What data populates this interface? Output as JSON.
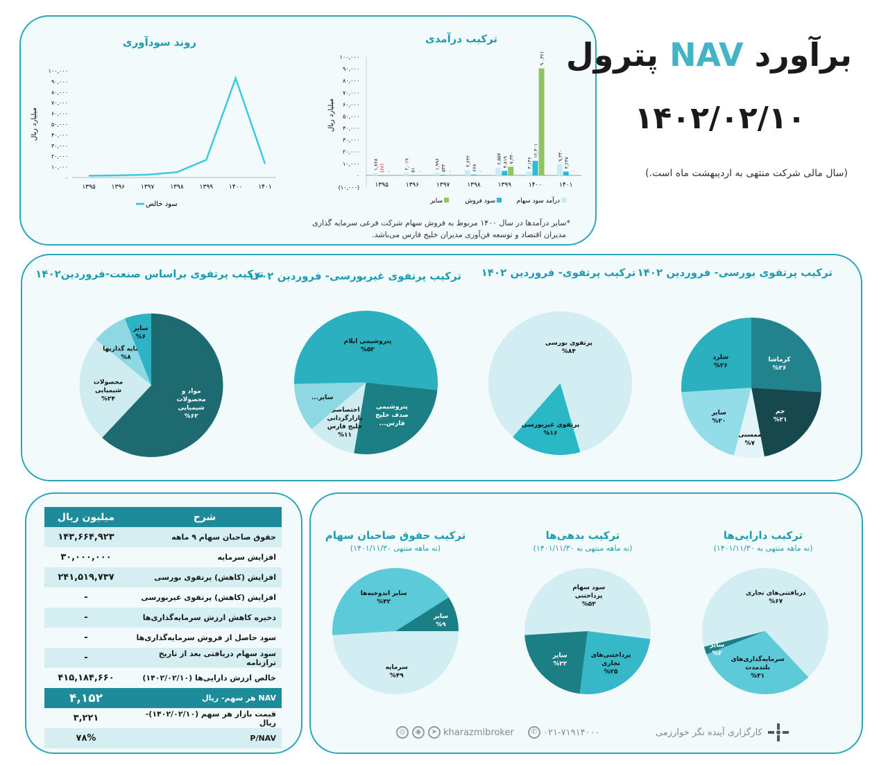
{
  "header": {
    "title_pre": "برآورد",
    "title_nav": "NAV",
    "title_post": "پترول",
    "date": "۱۴۰۲/۰۲/۱۰",
    "note": "(سال مالی شرکت منتهی به اردیبهشت ماه است.)"
  },
  "chart_data": [
    {
      "id": "profit",
      "type": "line",
      "title": "روند سودآوری",
      "ylabel": "میلیارد ریال",
      "x": [
        "۱۳۹۵",
        "۱۳۹۶",
        "۱۳۹۷",
        "۱۳۹۸",
        "۱۳۹۹",
        "۱۴۰۰",
        "۱۴۰۱"
      ],
      "y_ticks": [
        "۱۰۰,۰۰۰",
        "۹۰,۰۰۰",
        "۸۰,۰۰۰",
        "۷۰,۰۰۰",
        "۶۰,۰۰۰",
        "۵۰,۰۰۰",
        "۴۰,۰۰۰",
        "۳۰,۰۰۰",
        "۲۰,۰۰۰",
        "۱۰,۰۰۰",
        "۰"
      ],
      "ylim": [
        0,
        100000
      ],
      "series": [
        {
          "name": "سود خالص",
          "values": [
            1700,
            2000,
            2700,
            5000,
            16500,
            93000,
            13000
          ],
          "color": "#3cc8e0"
        }
      ]
    },
    {
      "id": "income",
      "type": "bar",
      "title": "ترکیب درآمدی",
      "ylabel": "میلیارد ریال",
      "x": [
        "۱۳۹۵",
        "۱۳۹۶",
        "۱۳۹۷",
        "۱۳۹۸",
        "۱۳۹۹",
        "۱۴۰۰",
        "۱۴۰۱"
      ],
      "y_ticks": [
        "۱۰۰,۰۰۰",
        "۹۰,۰۰۰",
        "۸۰,۰۰۰",
        "۷۰,۰۰۰",
        "۶۰,۰۰۰",
        "۵۰,۰۰۰",
        "۴۰,۰۰۰",
        "۳۰,۰۰۰",
        "۲۰,۰۰۰",
        "۱۰,۰۰۰",
        "۰",
        "(۱۰,۰۰۰)"
      ],
      "ylim": [
        -10000,
        100000
      ],
      "series": [
        {
          "name": "درآمد سود سهام",
          "color": "#c8ecf2",
          "values": [
            1768,
            2019,
            1996,
            4632,
            6557,
            3136,
            9340
          ],
          "labels": [
            "۱,۷۶۸",
            "۲,۰۱۹",
            "۱,۹۹۶",
            "۴,۶۳۲",
            "۶,۵۵۷",
            "۳,۱۳۶",
            "۹,۳۴۰"
          ]
        },
        {
          "name": "سود فروش",
          "color": "#2fb9d8",
          "values": [
            -66,
            51,
            543,
            668,
            3819,
            12301,
            3237
          ],
          "labels": [
            "(۶۶)",
            "۵۱",
            "۵۴۳",
            "۶۶۸",
            "۳,۸۱۹",
            "۱۲,۳۰۱",
            "۳,۲۳۷"
          ]
        },
        {
          "name": "سایر",
          "color": "#8fc462",
          "values": [
            0,
            0,
            0,
            0,
            7340,
            90321,
            0
          ],
          "labels": [
            "۰",
            "۰",
            "۰",
            "۰",
            "۷,۳۴۰",
            "۹۰,۳۲۱",
            "۰"
          ]
        }
      ],
      "footnote_1": "*سایر درآمدها در سال ۱۴۰۰ مربوط به فروش سهام شرکت فرعی سرمایه گذاری",
      "footnote_2": "مدیران اقتصاد و توسعه فن‌آوری مدیران خلیج فارس می‌باشد."
    },
    {
      "id": "industry",
      "type": "pie",
      "title": "ترکیب پرتفوی براساس صنعت-فروردین۱۴۰۲",
      "slices": [
        {
          "label": "مواد و محصولات شیمیایی",
          "pct": "%۶۲",
          "value": 62,
          "color": "#1d6b71"
        },
        {
          "label": "محصولات شیمیایی",
          "pct": "%۲۴",
          "value": 24,
          "color": "#cfecf1"
        },
        {
          "label": "سرمایه گذاریها",
          "pct": "%۸",
          "value": 8,
          "color": "#8ed8e4"
        },
        {
          "label": "سایر",
          "pct": "%۶",
          "value": 6,
          "color": "#2fb2c3"
        }
      ]
    },
    {
      "id": "unlisted",
      "type": "pie",
      "title": "ترکیب پرتفوی غیربورسی- فروردین ۱۴۰۲",
      "slices": [
        {
          "label": "پتروشیمی ایلام",
          "pct": "%۵۲",
          "value": 52,
          "color": "#2ab0bf"
        },
        {
          "label": "پتروشیمی صدف خلیج فارس...",
          "pct": "",
          "value": 26,
          "color": "#1d7f86"
        },
        {
          "label": "اختصاصی بازارگردانی خلیج فارس",
          "pct": "%۱۱",
          "value": 11,
          "color": "#cfecf1"
        },
        {
          "label": "سایر...",
          "pct": "",
          "value": 11,
          "color": "#8ed8e4"
        }
      ]
    },
    {
      "id": "portfolio",
      "type": "pie",
      "title": "ترکیب پرتفوی- فروردین ۱۴۰۲",
      "slices": [
        {
          "label": "پرتفوی بورسی",
          "pct": "%۸۴",
          "value": 84,
          "color": "#d2eef3"
        },
        {
          "label": "پرتفوی غیربورسی",
          "pct": "%۱۶",
          "value": 16,
          "color": "#2ab8c6"
        }
      ]
    },
    {
      "id": "listed",
      "type": "pie",
      "title": "ترکیب پرتفوی بورسی- فروردین ۱۴۰۲",
      "slices": [
        {
          "label": "کرماشا",
          "pct": "%۲۶",
          "value": 26,
          "color": "#22838d"
        },
        {
          "label": "جم",
          "pct": "%۲۱",
          "value": 21,
          "color": "#17484d"
        },
        {
          "label": "ممسنی",
          "pct": "%۷",
          "value": 7,
          "color": "#e2f4f7"
        },
        {
          "label": "سایر",
          "pct": "%۲۰",
          "value": 20,
          "color": "#93dde8"
        },
        {
          "label": "شلرد",
          "pct": "%۲۶",
          "value": 26,
          "color": "#2ab0bf"
        }
      ]
    },
    {
      "id": "equity",
      "type": "pie",
      "title": "ترکیب حقوق صاحبان سهام",
      "subtitle": "(نه ماهه منتهی ۱۴۰۱/۱۱/۳۰)",
      "slices": [
        {
          "label": "سرمایه",
          "pct": "%۴۹",
          "value": 49,
          "color": "#d2eef3"
        },
        {
          "label": "سایر اندوخته‌ها",
          "pct": "%۴۲",
          "value": 42,
          "color": "#5ccad8"
        },
        {
          "label": "سایر",
          "pct": "%۹",
          "value": 9,
          "color": "#1d7f86"
        }
      ]
    },
    {
      "id": "liabilities",
      "type": "pie",
      "title": "ترکیب بدهی‌ها",
      "subtitle": "(نه ماهه منتهی به ۱۴۰۱/۱۱/۳۰)",
      "slices": [
        {
          "label": "سود سهام پرداختنی",
          "pct": "%۵۳",
          "value": 53,
          "color": "#d2eef3"
        },
        {
          "label": "پرداختنی‌های تجاری",
          "pct": "%۲۵",
          "value": 25,
          "color": "#36b8c8"
        },
        {
          "label": "سایر",
          "pct": "%۲۲",
          "value": 22,
          "color": "#1d7f86"
        }
      ]
    },
    {
      "id": "assets",
      "type": "pie",
      "title": "ترکیب دارایی‌ها",
      "subtitle": "(نه ماهه منتهی به ۱۴۰۱/۱۱/۳۰)",
      "slices": [
        {
          "label": "دریافتنی‌های تجاری",
          "pct": "%۶۷",
          "value": 67,
          "color": "#d2eef3"
        },
        {
          "label": "سرمایه‌گذاری‌های بلندمدت",
          "pct": "%۳۱",
          "value": 31,
          "color": "#5ccad8"
        },
        {
          "label": "سایر",
          "pct": "%۲",
          "value": 2,
          "color": "#1d7f86"
        }
      ]
    }
  ],
  "nav_table": {
    "col_desc": "شرح",
    "col_value": "میلیون ریال",
    "rows": [
      {
        "desc": "حقوق صاحبان سهام ۹ ماهه",
        "value": "۱۴۳,۶۶۴,۹۲۳"
      },
      {
        "desc": "افزایش سرمایه",
        "value": "۳۰,۰۰۰,۰۰۰"
      },
      {
        "desc": "افزایش (کاهش) پرتفوی بورسی",
        "value": "۲۴۱,۵۱۹,۷۳۷"
      },
      {
        "desc": "افزایش (کاهش) پرتفوی غیربورسی",
        "value": "-"
      },
      {
        "desc": "ذخیره کاهش ارزش سرمایه‌گذاری‌ها",
        "value": "-"
      },
      {
        "desc": "سود حاصل از فروش سرمایه‌گذاری‌ها",
        "value": "-"
      },
      {
        "desc": "سود سهام دریافتی بعد از تاریخ ترازنامه",
        "value": "-"
      },
      {
        "desc": "خالص ارزش دارایی‌ها (۱۴۰۲/۰۲/۱۰)",
        "value": "۴۱۵,۱۸۴,۶۶۰"
      },
      {
        "desc": "NAV هر سهم- ریال",
        "value": "۴,۱۵۲"
      },
      {
        "desc": "قیمت بازار هر سهم (۱۴۰۲/۰۲/۱۰)- ریال",
        "value": "۳,۲۲۱"
      },
      {
        "desc": "P/NAV",
        "value": "۷۸%"
      }
    ]
  },
  "footer": {
    "handle": "kharazmibroker",
    "phone": "۰۲۱-۷۱۹۱۴۰۰۰",
    "company": "کارگزاری آینده نگر خوارزمی"
  },
  "colors": {
    "accent": "#2aa6b7",
    "panel": "#f3fafb",
    "nav_blue": "#43b3c6"
  }
}
